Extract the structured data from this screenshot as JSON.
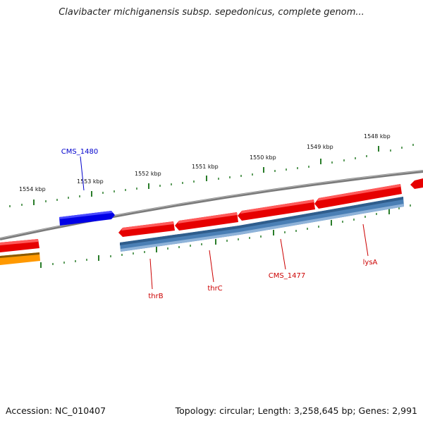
{
  "title": "Clavibacter michiganensis subsp. sepedonicus, complete genom...",
  "footer": {
    "accession": "Accession: NC_010407",
    "summary": "Topology: circular; Length: 3,258,645 bp; Genes: 2,991"
  },
  "tick_labels": [
    "1554 kbp",
    "1553 kbp",
    "1552 kbp",
    "1551 kbp",
    "1550 kbp",
    "1549 kbp",
    "1548 kbp"
  ],
  "gene_labels": [
    {
      "name": "CMS_1480",
      "color": "#0000cc"
    },
    {
      "name": "thrB",
      "color": "#cc0000"
    },
    {
      "name": "thrC",
      "color": "#cc0000"
    },
    {
      "name": "CMS_1477",
      "color": "#cc0000"
    },
    {
      "name": "lysA",
      "color": "#cc0000"
    }
  ],
  "colors": {
    "backbone": "#808080",
    "gene_red": "#e60000",
    "gene_blue": "#0000e6",
    "gene_orange": "#ff9900",
    "cds_steel": "#4a7fb5",
    "tick_green": "#2a7d2a"
  }
}
